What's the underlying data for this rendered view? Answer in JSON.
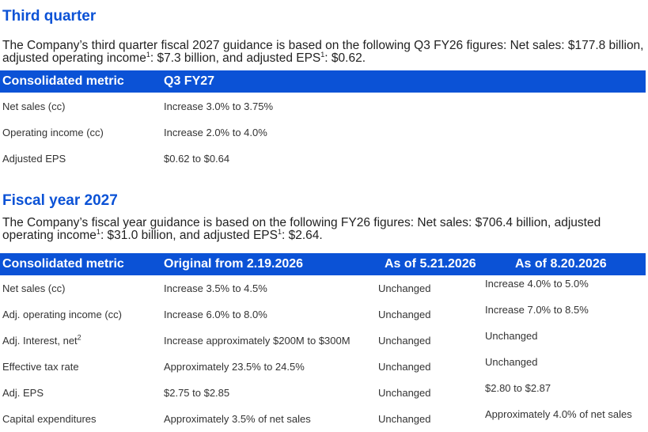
{
  "q3": {
    "heading": "Third quarter",
    "intro_a": "The Company’s third quarter fiscal 2027 guidance is based on the following Q3 FY26 figures: Net sales: $177.8 billion, adjusted operating income",
    "sup1": "1",
    "intro_b": ": $7.3 billion, and adjusted EPS",
    "sup2": "1",
    "intro_c": ": $0.62.",
    "headers": [
      "Consolidated metric",
      "Q3 FY27"
    ],
    "rows": [
      {
        "metric": "Net sales (cc)",
        "value": "Increase 3.0% to 3.75%"
      },
      {
        "metric": "Operating income (cc)",
        "value": "Increase 2.0% to 4.0%"
      },
      {
        "metric": "Adjusted EPS",
        "value": "$0.62 to $0.64"
      }
    ]
  },
  "fy": {
    "heading": "Fiscal year 2027",
    "intro_a": "The Company’s fiscal year guidance is based on the following FY26 figures: Net sales: $706.4 billion, adjusted operating income",
    "sup1": "1",
    "intro_b": ": $31.0 billion, and adjusted EPS",
    "sup2": "1",
    "intro_c": ": $2.64.",
    "headers": [
      "Consolidated metric",
      "Original from 2.19.2026",
      "As of 5.21.2026",
      "As of 8.20.2026"
    ],
    "rows": [
      {
        "metric": "Net sales (cc)",
        "original": "Increase 3.5% to 4.5%",
        "may": "Unchanged",
        "aug": "Increase 4.0% to 5.0%"
      },
      {
        "metric": "Adj. operating income (cc)",
        "original": "Increase 6.0% to 8.0%",
        "may": "Unchanged",
        "aug": "Increase 7.0% to 8.5%"
      },
      {
        "metric": "Adj. Interest, net",
        "metric_sup": "2",
        "original": "Increase approximately $200M to $300M",
        "may": "Unchanged",
        "aug": "Unchanged"
      },
      {
        "metric": "Effective tax rate",
        "original": "Approximately 23.5% to 24.5%",
        "may": "Unchanged",
        "aug": "Unchanged"
      },
      {
        "metric": "Adj. EPS",
        "original": "$2.75 to $2.85",
        "may": "Unchanged",
        "aug": "$2.80 to $2.87"
      },
      {
        "metric": "Capital expenditures",
        "original": "Approximately 3.5% of net sales",
        "may": "Unchanged",
        "aug": "Approximately 4.0% of net sales"
      }
    ]
  },
  "colors": {
    "accent": "#0b52d6",
    "header_text": "#ffffff"
  }
}
